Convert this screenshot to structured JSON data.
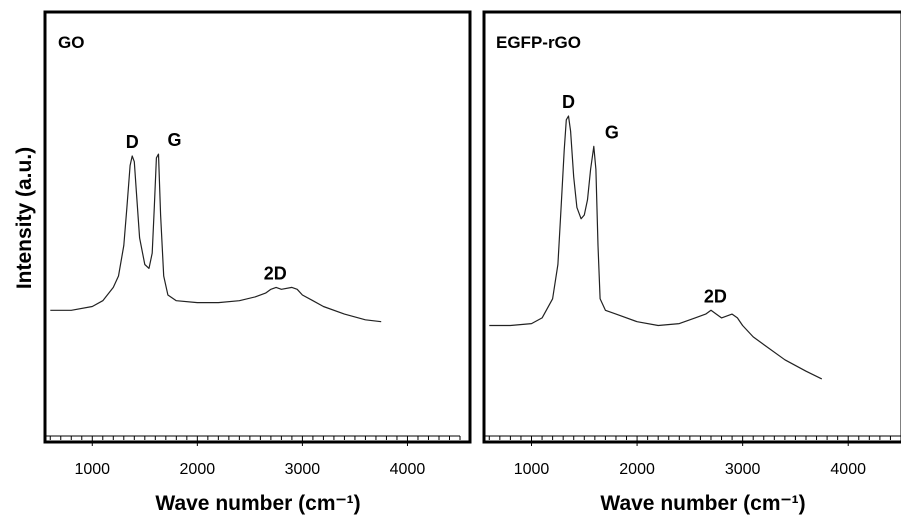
{
  "figure": {
    "ylabel": "Intensity (a.u.)"
  },
  "chart_data": [
    {
      "type": "line",
      "title": "GO",
      "xlabel": "Wave number (cm⁻¹)",
      "ylabel": "Intensity (a.u.)",
      "xlim": [
        550,
        4500
      ],
      "ylim": [
        0,
        1
      ],
      "xticks": [
        1000,
        2000,
        3000,
        4000
      ],
      "grid": false,
      "series": [
        {
          "x": [
            600,
            800,
            1000,
            1100,
            1200,
            1250,
            1300,
            1330,
            1360,
            1380,
            1400,
            1420,
            1450,
            1500,
            1540,
            1570,
            1590,
            1610,
            1630,
            1650,
            1680,
            1720,
            1800,
            2000,
            2200,
            2400,
            2550,
            2650,
            2700,
            2750,
            2800,
            2900,
            2950,
            3000,
            3100,
            3200,
            3400,
            3600,
            3750
          ],
          "y": [
            0.33,
            0.33,
            0.34,
            0.355,
            0.39,
            0.42,
            0.5,
            0.6,
            0.71,
            0.735,
            0.72,
            0.64,
            0.52,
            0.45,
            0.44,
            0.48,
            0.6,
            0.73,
            0.74,
            0.58,
            0.42,
            0.37,
            0.355,
            0.35,
            0.35,
            0.355,
            0.365,
            0.375,
            0.385,
            0.39,
            0.385,
            0.39,
            0.385,
            0.37,
            0.355,
            0.34,
            0.32,
            0.305,
            0.3
          ]
        }
      ],
      "annotations": [
        {
          "text": "D",
          "x": 1380,
          "y": 0.735
        },
        {
          "text": "G",
          "x": 1630,
          "y": 0.74
        },
        {
          "text": "2D",
          "x": 2780,
          "y": 0.39
        }
      ]
    },
    {
      "type": "line",
      "title": "EGFP-rGO",
      "xlabel": "Wave number (cm⁻¹)",
      "ylabel": "Intensity (a.u.)",
      "xlim": [
        550,
        4500
      ],
      "ylim": [
        0,
        1
      ],
      "xticks": [
        1000,
        2000,
        3000,
        4000
      ],
      "grid": false,
      "series": [
        {
          "x": [
            600,
            800,
            1000,
            1100,
            1200,
            1250,
            1280,
            1310,
            1330,
            1350,
            1370,
            1400,
            1430,
            1470,
            1500,
            1530,
            1560,
            1590,
            1610,
            1630,
            1650,
            1700,
            1800,
            2000,
            2200,
            2400,
            2550,
            2650,
            2700,
            2750,
            2800,
            2900,
            2950,
            3000,
            3100,
            3200,
            3400,
            3600,
            3750
          ],
          "y": [
            0.29,
            0.29,
            0.295,
            0.31,
            0.36,
            0.45,
            0.6,
            0.75,
            0.83,
            0.84,
            0.8,
            0.68,
            0.6,
            0.57,
            0.58,
            0.62,
            0.7,
            0.76,
            0.7,
            0.5,
            0.36,
            0.33,
            0.32,
            0.3,
            0.29,
            0.295,
            0.31,
            0.32,
            0.33,
            0.32,
            0.31,
            0.32,
            0.31,
            0.29,
            0.26,
            0.24,
            0.2,
            0.17,
            0.15
          ]
        }
      ],
      "annotations": [
        {
          "text": "D",
          "x": 1350,
          "y": 0.84
        },
        {
          "text": "G",
          "x": 1610,
          "y": 0.76
        },
        {
          "text": "2D",
          "x": 2780,
          "y": 0.33
        }
      ]
    }
  ]
}
